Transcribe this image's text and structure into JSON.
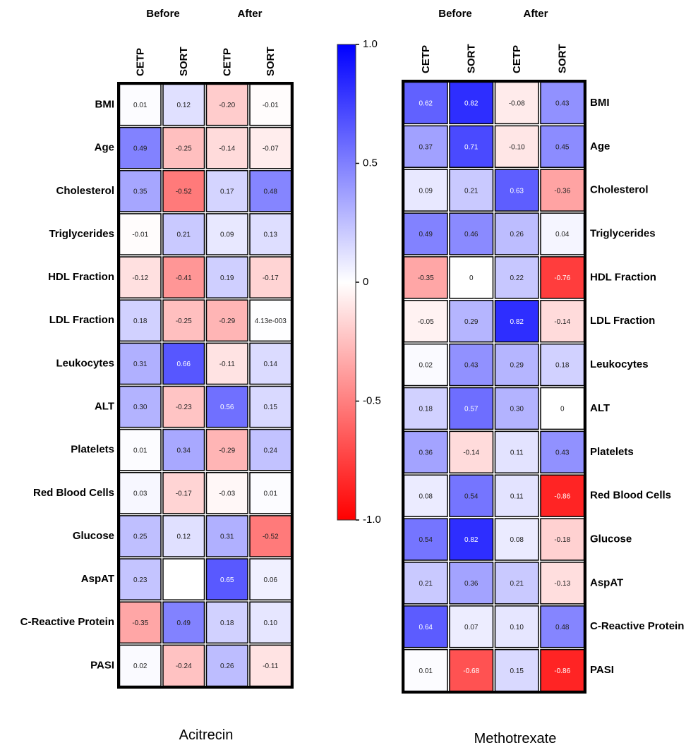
{
  "chart_data": [
    {
      "type": "heatmap",
      "title": "Acitrecin",
      "group_labels": [
        "Before",
        "After"
      ],
      "columns": [
        "CETP",
        "SORT",
        "CETP",
        "SORT"
      ],
      "rows": [
        "BMI",
        "Age",
        "Cholesterol",
        "Triglycerides",
        "HDL Fraction",
        "LDL Fraction",
        "Leukocytes",
        "ALT",
        "Platelets",
        "Red Blood Cells",
        "Glucose",
        "AspAT",
        "C-Reactive Protein",
        "PASI"
      ],
      "values": [
        [
          0.01,
          0.12,
          -0.2,
          -0.01
        ],
        [
          0.49,
          -0.25,
          -0.14,
          -0.07
        ],
        [
          0.35,
          -0.52,
          0.17,
          0.48
        ],
        [
          -0.01,
          0.21,
          0.09,
          0.13
        ],
        [
          -0.12,
          -0.41,
          0.19,
          -0.17
        ],
        [
          0.18,
          -0.25,
          -0.29,
          0.00413
        ],
        [
          0.31,
          0.66,
          -0.11,
          0.14
        ],
        [
          0.3,
          -0.23,
          0.56,
          0.15
        ],
        [
          0.01,
          0.34,
          -0.29,
          0.24
        ],
        [
          0.03,
          -0.17,
          -0.03,
          0.01
        ],
        [
          0.25,
          0.12,
          0.31,
          -0.52
        ],
        [
          0.23,
          null,
          0.65,
          0.06
        ],
        [
          -0.35,
          0.49,
          0.18,
          0.1
        ],
        [
          0.02,
          -0.24,
          0.26,
          -0.11
        ]
      ],
      "labels": [
        [
          "0.01",
          "0.12",
          "-0.20",
          "-0.01"
        ],
        [
          "0.49",
          "-0.25",
          "-0.14",
          "-0.07"
        ],
        [
          "0.35",
          "-0.52",
          "0.17",
          "0.48"
        ],
        [
          "-0.01",
          "0.21",
          "0.09",
          "0.13"
        ],
        [
          "-0.12",
          "-0.41",
          "0.19",
          "-0.17"
        ],
        [
          "0.18",
          "-0.25",
          "-0.29",
          "4.13e-003"
        ],
        [
          "0.31",
          "0.66",
          "-0.11",
          "0.14"
        ],
        [
          "0.30",
          "-0.23",
          "0.56",
          "0.15"
        ],
        [
          "0.01",
          "0.34",
          "-0.29",
          "0.24"
        ],
        [
          "0.03",
          "-0.17",
          "-0.03",
          "0.01"
        ],
        [
          "0.25",
          "0.12",
          "0.31",
          "-0.52"
        ],
        [
          "0.23",
          "",
          "0.65",
          "0.06"
        ],
        [
          "-0.35",
          "0.49",
          "0.18",
          "0.10"
        ],
        [
          "0.02",
          "-0.24",
          "0.26",
          "-0.11"
        ]
      ]
    },
    {
      "type": "heatmap",
      "title": "Methotrexate",
      "group_labels": [
        "Before",
        "After"
      ],
      "columns": [
        "CETP",
        "SORT",
        "CETP",
        "SORT"
      ],
      "rows": [
        "BMI",
        "Age",
        "Cholesterol",
        "Triglycerides",
        "HDL Fraction",
        "LDL Fraction",
        "Leukocytes",
        "ALT",
        "Platelets",
        "Red Blood Cells",
        "Glucose",
        "AspAT",
        "C-Reactive Protein",
        "PASI"
      ],
      "values": [
        [
          0.62,
          0.82,
          -0.08,
          0.43
        ],
        [
          0.37,
          0.71,
          -0.1,
          0.45
        ],
        [
          0.09,
          0.21,
          0.63,
          -0.36
        ],
        [
          0.49,
          0.46,
          0.26,
          0.04
        ],
        [
          -0.35,
          0,
          0.22,
          -0.76
        ],
        [
          -0.05,
          0.29,
          0.82,
          -0.14
        ],
        [
          0.02,
          0.43,
          0.29,
          0.18
        ],
        [
          0.18,
          0.57,
          0.3,
          0
        ],
        [
          0.36,
          -0.14,
          0.11,
          0.43
        ],
        [
          0.08,
          0.54,
          0.11,
          -0.86
        ],
        [
          0.54,
          0.82,
          0.08,
          -0.18
        ],
        [
          0.21,
          0.36,
          0.21,
          -0.13
        ],
        [
          0.64,
          0.07,
          0.1,
          0.48
        ],
        [
          0.01,
          -0.68,
          0.15,
          -0.86
        ]
      ],
      "labels": [
        [
          "0.62",
          "0.82",
          "-0.08",
          "0.43"
        ],
        [
          "0.37",
          "0.71",
          "-0.10",
          "0.45"
        ],
        [
          "0.09",
          "0.21",
          "0.63",
          "-0.36"
        ],
        [
          "0.49",
          "0.46",
          "0.26",
          "0.04"
        ],
        [
          "-0.35",
          "0",
          "0.22",
          "-0.76"
        ],
        [
          "-0.05",
          "0.29",
          "0.82",
          "-0.14"
        ],
        [
          "0.02",
          "0.43",
          "0.29",
          "0.18"
        ],
        [
          "0.18",
          "0.57",
          "0.30",
          "0"
        ],
        [
          "0.36",
          "-0.14",
          "0.11",
          "0.43"
        ],
        [
          "0.08",
          "0.54",
          "0.11",
          "-0.86"
        ],
        [
          "0.54",
          "0.82",
          "0.08",
          "-0.18"
        ],
        [
          "0.21",
          "0.36",
          "0.21",
          "-0.13"
        ],
        [
          "0.64",
          "0.07",
          "0.10",
          "0.48"
        ],
        [
          "0.01",
          "-0.68",
          "0.15",
          "-0.86"
        ]
      ]
    }
  ],
  "colorbar": {
    "min": -1.0,
    "max": 1.0,
    "ticks": [
      1.0,
      0.5,
      0,
      -0.5,
      -1.0
    ],
    "tick_labels": [
      "1.0",
      "0.5",
      "0",
      "-0.5",
      "-1.0"
    ],
    "colors": {
      "negative": "#ff0000",
      "zero": "#ffffff",
      "positive": "#0000ff"
    }
  }
}
